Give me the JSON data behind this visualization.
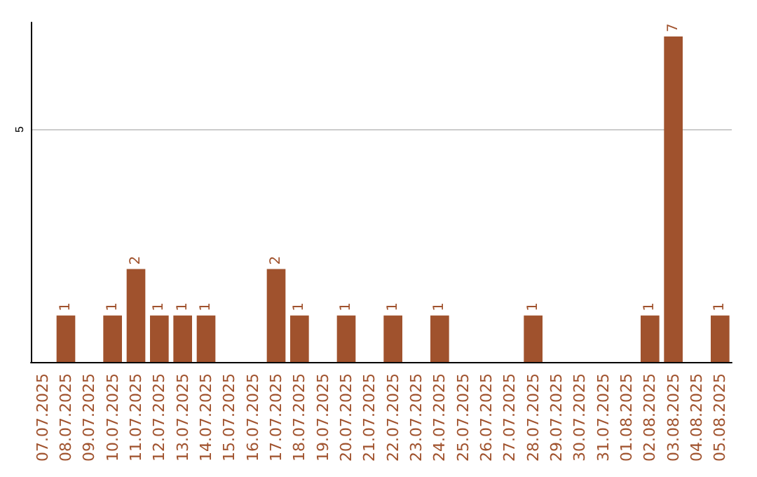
{
  "chart_data": {
    "type": "bar",
    "categories": [
      "07.07.2025",
      "08.07.2025",
      "09.07.2025",
      "10.07.2025",
      "11.07.2025",
      "12.07.2025",
      "13.07.2025",
      "14.07.2025",
      "15.07.2025",
      "16.07.2025",
      "17.07.2025",
      "18.07.2025",
      "19.07.2025",
      "20.07.2025",
      "21.07.2025",
      "22.07.2025",
      "23.07.2025",
      "24.07.2025",
      "25.07.2025",
      "26.07.2025",
      "27.07.2025",
      "28.07.2025",
      "29.07.2025",
      "30.07.2025",
      "31.07.2025",
      "01.08.2025",
      "02.08.2025",
      "03.08.2025",
      "04.08.2025",
      "05.08.2025"
    ],
    "values": [
      0,
      1,
      0,
      1,
      2,
      1,
      1,
      1,
      0,
      0,
      2,
      1,
      0,
      1,
      0,
      1,
      0,
      1,
      0,
      0,
      0,
      1,
      0,
      0,
      0,
      0,
      1,
      7,
      0,
      1
    ],
    "value_labels": [
      null,
      "1",
      null,
      "1",
      "2",
      "1",
      "1",
      "1",
      null,
      null,
      "2",
      "1",
      null,
      "1",
      null,
      "1",
      null,
      "1",
      null,
      null,
      null,
      "1",
      null,
      null,
      null,
      null,
      "1",
      "7",
      null,
      "1"
    ],
    "color": "#a0522d",
    "ylim": [
      0,
      7.3
    ],
    "yticks": [
      5
    ],
    "grid": "y"
  }
}
